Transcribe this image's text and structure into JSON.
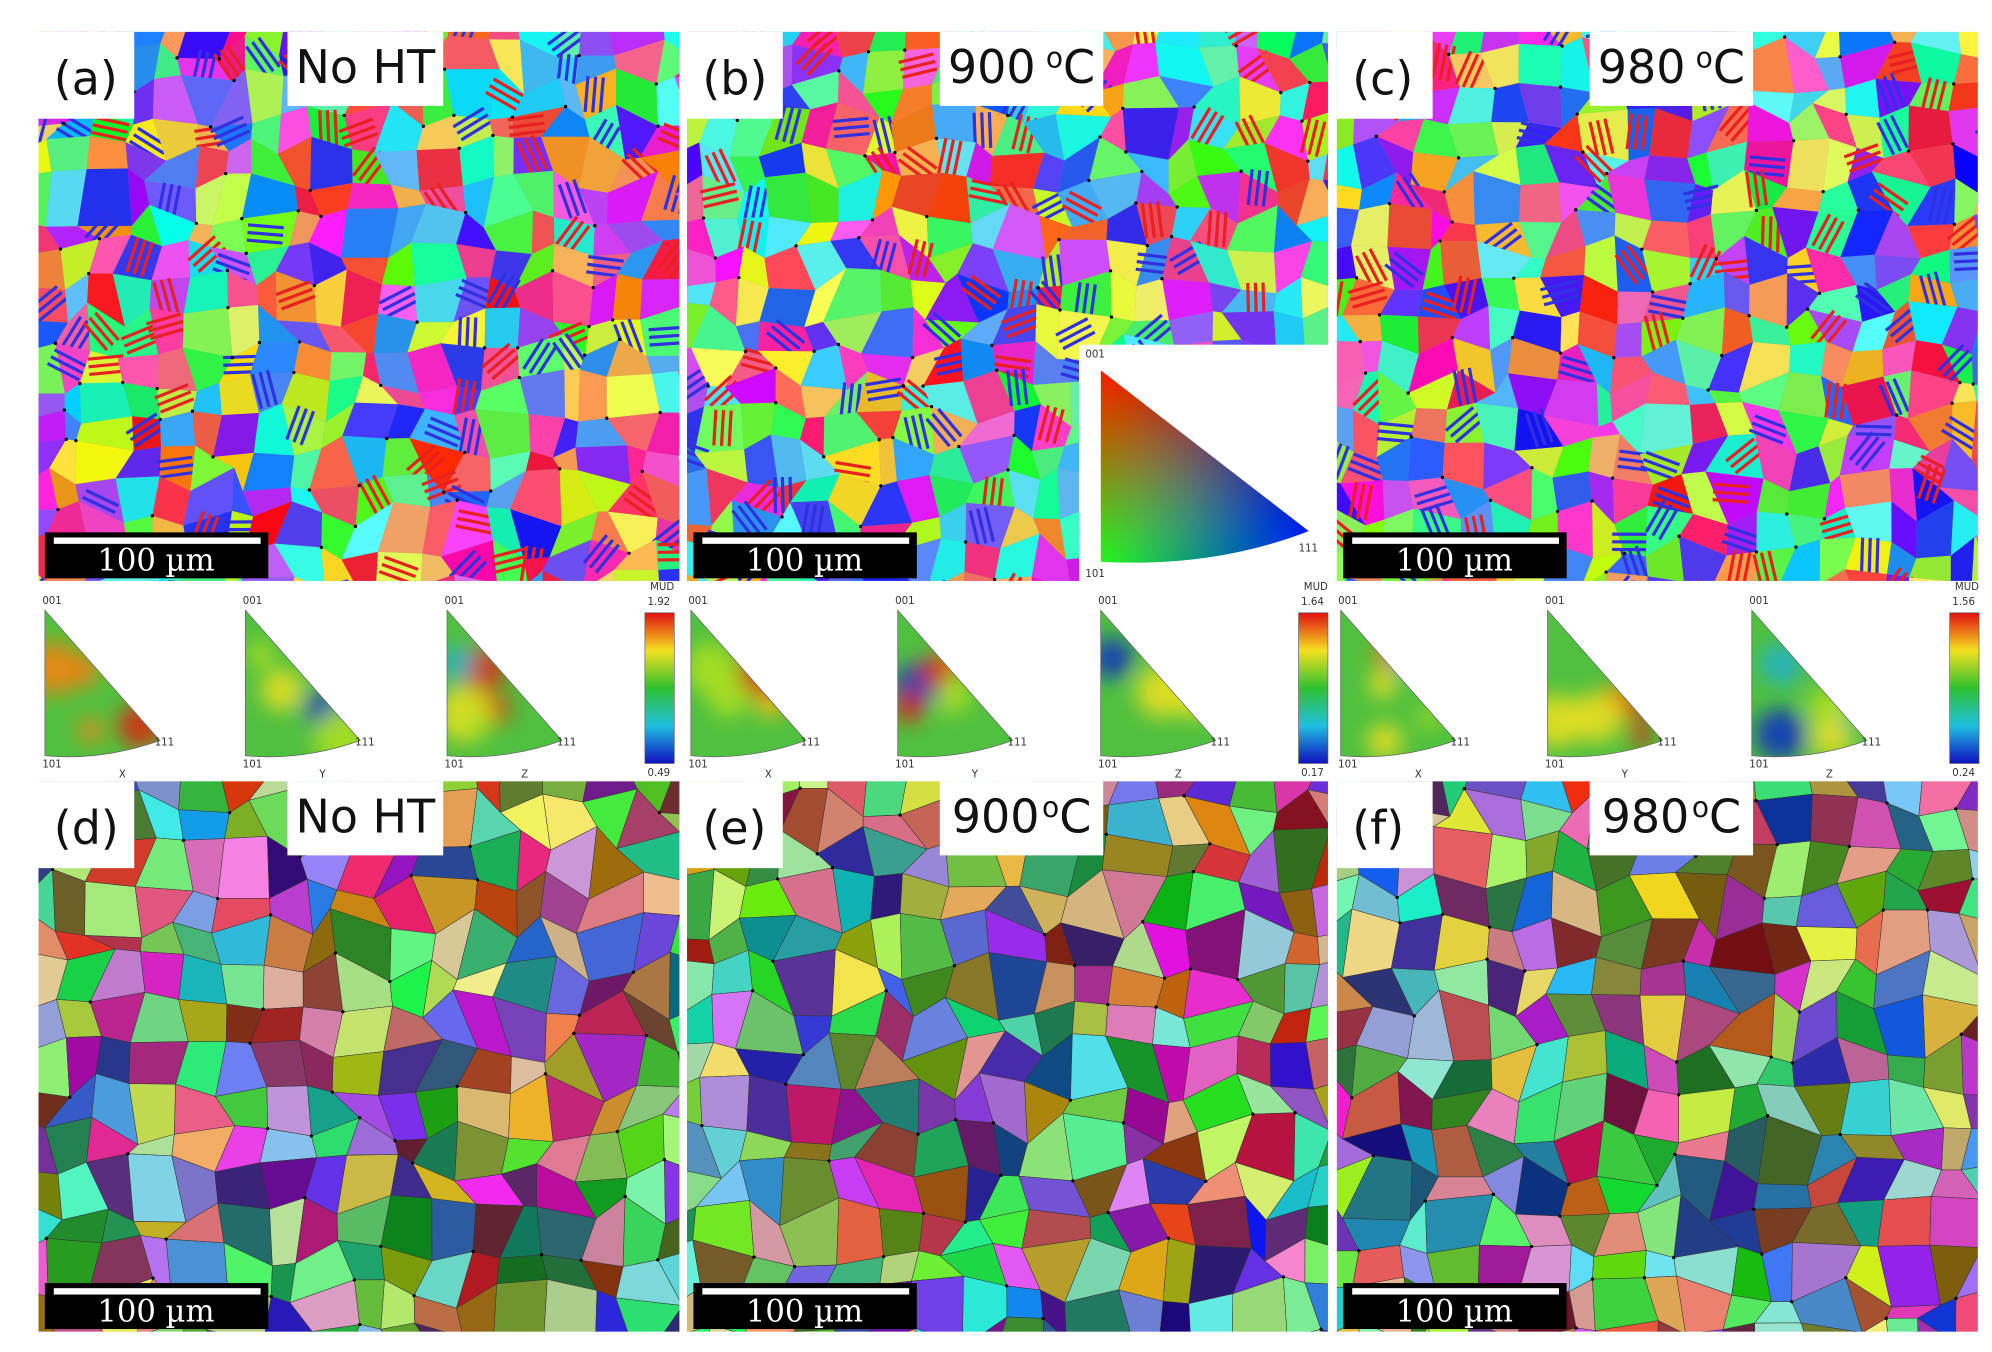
{
  "panels": [
    {
      "label": "(a)",
      "condition": {
        "text": "No HT"
      },
      "scale_bar": "100 µm"
    },
    {
      "label": "(b)",
      "condition": {
        "text": "900",
        "sup": "o",
        "unit": "C"
      },
      "scale_bar": "100 µm"
    },
    {
      "label": "(c)",
      "condition": {
        "text": "980",
        "sup": "o",
        "unit": "C"
      },
      "scale_bar": "100 µm"
    },
    {
      "label": "(d)",
      "condition": {
        "text": "No HT"
      },
      "scale_bar": "100 µm"
    },
    {
      "label": "(e)",
      "condition": {
        "text": "900",
        "sup": "o",
        "unit": "C"
      },
      "scale_bar": "100 µm"
    },
    {
      "label": "(f)",
      "condition": {
        "text": "980",
        "sup": "o",
        "unit": "C"
      },
      "scale_bar": "100 µm"
    }
  ],
  "ipf_key": {
    "top": "001",
    "bottom_left": "101",
    "right": "111"
  },
  "pole_figures": [
    {
      "triangles": [
        {
          "top": "001",
          "bottom_left": "101",
          "right": "111",
          "axis": "X"
        },
        {
          "top": "001",
          "bottom_left": "101",
          "right": "111",
          "axis": "Y"
        },
        {
          "top": "001",
          "bottom_left": "101",
          "right": "111",
          "axis": "Z"
        }
      ],
      "colorbar": {
        "title": "MUD",
        "max": "1.92",
        "min": "0.49"
      }
    },
    {
      "triangles": [
        {
          "top": "001",
          "bottom_left": "101",
          "right": "111",
          "axis": "X"
        },
        {
          "top": "001",
          "bottom_left": "101",
          "right": "111",
          "axis": "Y"
        },
        {
          "top": "001",
          "bottom_left": "101",
          "right": "111",
          "axis": "Z"
        }
      ],
      "colorbar": {
        "title": "MUD",
        "max": "1.64",
        "min": "0.17"
      }
    },
    {
      "triangles": [
        {
          "top": "001",
          "bottom_left": "101",
          "right": "111",
          "axis": "X"
        },
        {
          "top": "001",
          "bottom_left": "101",
          "right": "111",
          "axis": "Y"
        },
        {
          "top": "001",
          "bottom_left": "101",
          "right": "111",
          "axis": "Z"
        }
      ],
      "colorbar": {
        "title": "MUD",
        "max": "1.56",
        "min": "0.24"
      }
    }
  ]
}
